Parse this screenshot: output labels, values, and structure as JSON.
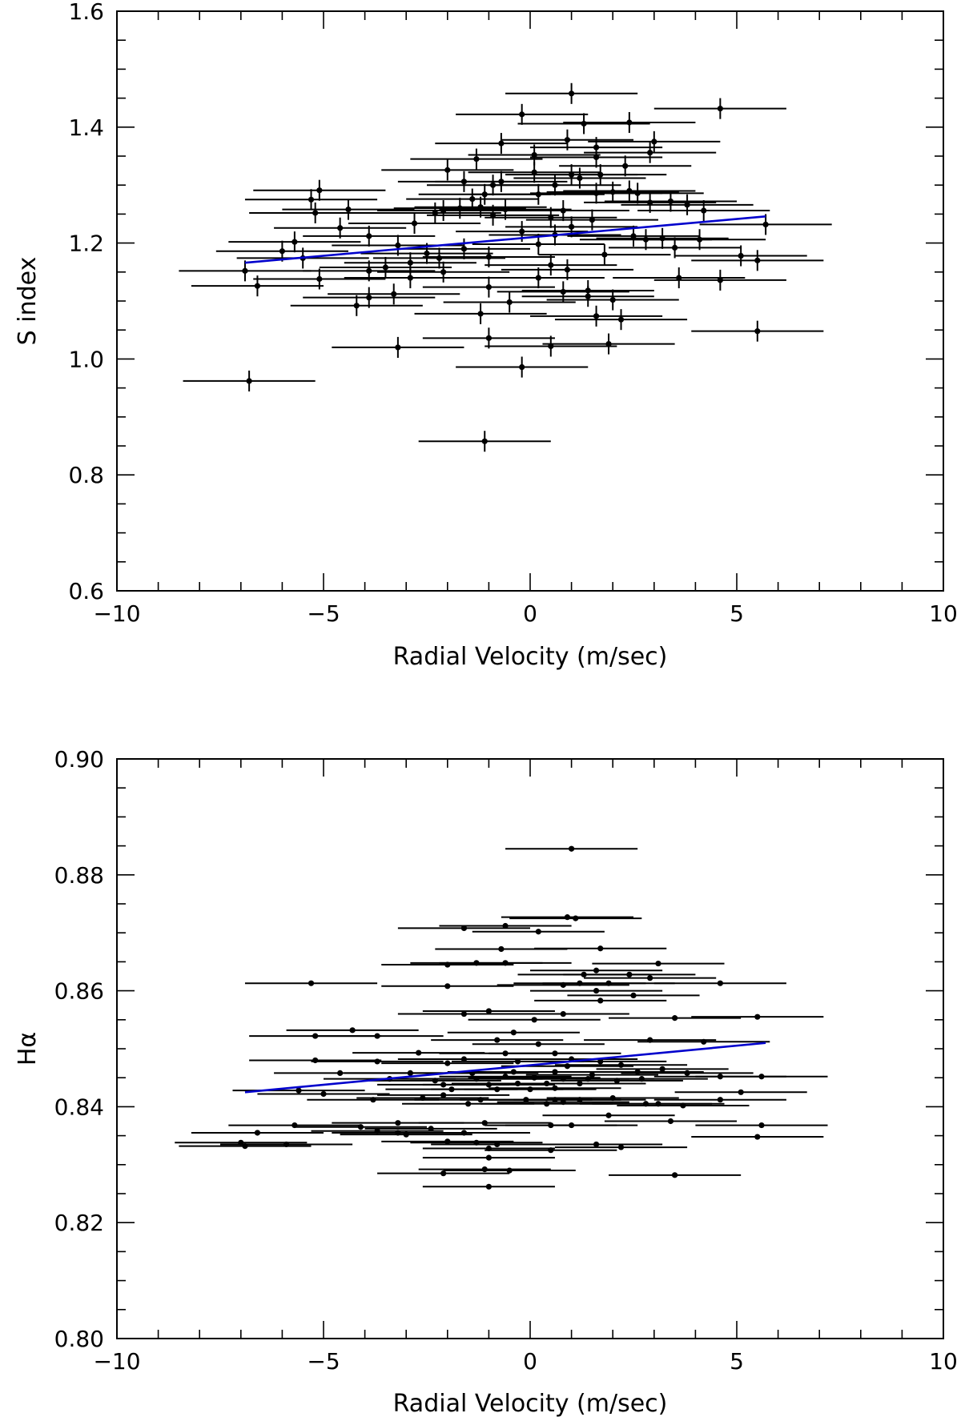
{
  "chart_data": [
    {
      "type": "scatter",
      "xlabel": "Radial Velocity (m/sec)",
      "ylabel": "S index",
      "xlim": [
        -10,
        10
      ],
      "ylim": [
        0.6,
        1.6
      ],
      "xticks": [
        -10,
        -5,
        0,
        5,
        10
      ],
      "xtick_labels": [
        "−10",
        "−5",
        "0",
        "5",
        "10"
      ],
      "yticks": [
        0.6,
        0.8,
        1.0,
        1.2,
        1.4,
        1.6
      ],
      "ytick_labels": [
        "0.6",
        "0.8",
        "1.0",
        "1.2",
        "1.4",
        "1.6"
      ],
      "x_err": 1.6,
      "y_err": 0.018,
      "points": [
        [
          1.0,
          1.458
        ],
        [
          4.6,
          1.432
        ],
        [
          -0.2,
          1.422
        ],
        [
          1.3,
          1.406
        ],
        [
          2.4,
          1.408
        ],
        [
          0.9,
          1.378
        ],
        [
          3.0,
          1.375
        ],
        [
          -0.7,
          1.372
        ],
        [
          1.6,
          1.365
        ],
        [
          2.9,
          1.356
        ],
        [
          0.1,
          1.352
        ],
        [
          1.6,
          1.348
        ],
        [
          -1.3,
          1.345
        ],
        [
          2.3,
          1.333
        ],
        [
          -2.0,
          1.326
        ],
        [
          0.1,
          1.322
        ],
        [
          1.0,
          1.318
        ],
        [
          1.7,
          1.318
        ],
        [
          1.2,
          1.312
        ],
        [
          -1.6,
          1.306
        ],
        [
          -0.7,
          1.306
        ],
        [
          -0.9,
          1.3
        ],
        [
          0.6,
          1.3
        ],
        [
          -5.1,
          1.291
        ],
        [
          2.4,
          1.29
        ],
        [
          1.6,
          1.286
        ],
        [
          2.0,
          1.288
        ],
        [
          2.6,
          1.286
        ],
        [
          -1.1,
          1.284
        ],
        [
          0.2,
          1.284
        ],
        [
          -5.3,
          1.275
        ],
        [
          -1.4,
          1.276
        ],
        [
          3.4,
          1.272
        ],
        [
          2.9,
          1.27
        ],
        [
          3.8,
          1.266
        ],
        [
          -4.4,
          1.258
        ],
        [
          -2.1,
          1.256
        ],
        [
          -1.7,
          1.26
        ],
        [
          -1.2,
          1.262
        ],
        [
          -0.6,
          1.258
        ],
        [
          0.8,
          1.256
        ],
        [
          -5.2,
          1.252
        ],
        [
          -2.3,
          1.252
        ],
        [
          -0.9,
          1.248
        ],
        [
          4.2,
          1.256
        ],
        [
          0.5,
          1.244
        ],
        [
          1.5,
          1.24
        ],
        [
          -2.8,
          1.234
        ],
        [
          5.7,
          1.232
        ],
        [
          -4.6,
          1.226
        ],
        [
          1.0,
          1.228
        ],
        [
          -0.2,
          1.22
        ],
        [
          -3.9,
          1.212
        ],
        [
          0.6,
          1.214
        ],
        [
          2.5,
          1.212
        ],
        [
          2.8,
          1.206
        ],
        [
          3.2,
          1.208
        ],
        [
          4.1,
          1.206
        ],
        [
          -5.7,
          1.202
        ],
        [
          -3.2,
          1.196
        ],
        [
          0.2,
          1.198
        ],
        [
          3.5,
          1.192
        ],
        [
          -1.6,
          1.19
        ],
        [
          -6.0,
          1.186
        ],
        [
          -2.5,
          1.182
        ],
        [
          1.8,
          1.18
        ],
        [
          -2.2,
          1.174
        ],
        [
          -1.0,
          1.176
        ],
        [
          5.1,
          1.178
        ],
        [
          -5.5,
          1.174
        ],
        [
          5.5,
          1.17
        ],
        [
          -2.9,
          1.166
        ],
        [
          0.5,
          1.162
        ],
        [
          -3.5,
          1.158
        ],
        [
          -3.9,
          1.152
        ],
        [
          -2.1,
          1.15
        ],
        [
          0.9,
          1.154
        ],
        [
          -6.9,
          1.152
        ],
        [
          -5.1,
          1.138
        ],
        [
          -2.9,
          1.14
        ],
        [
          0.2,
          1.14
        ],
        [
          3.6,
          1.14
        ],
        [
          4.6,
          1.136
        ],
        [
          -6.6,
          1.126
        ],
        [
          -1.0,
          1.124
        ],
        [
          1.4,
          1.118
        ],
        [
          0.8,
          1.116
        ],
        [
          1.4,
          1.108
        ],
        [
          -3.9,
          1.106
        ],
        [
          -3.3,
          1.112
        ],
        [
          2.0,
          1.102
        ],
        [
          -0.5,
          1.098
        ],
        [
          -4.2,
          1.092
        ],
        [
          -1.2,
          1.078
        ],
        [
          1.6,
          1.074
        ],
        [
          2.2,
          1.068
        ],
        [
          5.5,
          1.048
        ],
        [
          -1.0,
          1.036
        ],
        [
          1.9,
          1.026
        ],
        [
          -3.2,
          1.02
        ],
        [
          0.5,
          1.022
        ],
        [
          -0.2,
          0.986
        ],
        [
          -6.8,
          0.962
        ],
        [
          -1.1,
          0.858
        ]
      ],
      "fit": {
        "x": [
          -6.9,
          5.7
        ],
        "y": [
          1.166,
          1.246
        ]
      }
    },
    {
      "type": "scatter",
      "xlabel": "Radial Velocity (m/sec)",
      "ylabel": "Hα",
      "xlim": [
        -10,
        10
      ],
      "ylim": [
        0.8,
        0.9
      ],
      "xticks": [
        -10,
        -5,
        0,
        5,
        10
      ],
      "xtick_labels": [
        "−10",
        "−5",
        "0",
        "5",
        "10"
      ],
      "yticks": [
        0.8,
        0.82,
        0.84,
        0.86,
        0.88,
        0.9
      ],
      "ytick_labels": [
        "0.80",
        "0.82",
        "0.84",
        "0.86",
        "0.88",
        "0.90"
      ],
      "x_err": 1.6,
      "y_err": 0,
      "points": [
        [
          1.0,
          0.8845
        ],
        [
          0.9,
          0.8727
        ],
        [
          1.1,
          0.8725
        ],
        [
          -1.6,
          0.8708
        ],
        [
          -0.6,
          0.8712
        ],
        [
          0.2,
          0.8702
        ],
        [
          -0.7,
          0.8672
        ],
        [
          1.7,
          0.8673
        ],
        [
          -1.3,
          0.8648
        ],
        [
          -2.0,
          0.8645
        ],
        [
          -0.6,
          0.8648
        ],
        [
          3.1,
          0.8647
        ],
        [
          1.3,
          0.8628
        ],
        [
          2.4,
          0.8628
        ],
        [
          1.6,
          0.8635
        ],
        [
          -5.3,
          0.8613
        ],
        [
          0.8,
          0.861
        ],
        [
          1.2,
          0.8613
        ],
        [
          1.9,
          0.8613
        ],
        [
          2.9,
          0.8622
        ],
        [
          4.6,
          0.8613
        ],
        [
          -2.0,
          0.8608
        ],
        [
          1.6,
          0.86
        ],
        [
          2.5,
          0.8592
        ],
        [
          1.7,
          0.8583
        ],
        [
          -1.6,
          0.856
        ],
        [
          -1.0,
          0.8565
        ],
        [
          0.1,
          0.855
        ],
        [
          0.8,
          0.856
        ],
        [
          3.5,
          0.8553
        ],
        [
          5.5,
          0.8555
        ],
        [
          -4.3,
          0.8532
        ],
        [
          -5.2,
          0.8522
        ],
        [
          -3.7,
          0.8522
        ],
        [
          -0.4,
          0.8528
        ],
        [
          -0.8,
          0.8515
        ],
        [
          0.2,
          0.8508
        ],
        [
          2.9,
          0.8515
        ],
        [
          4.2,
          0.8512
        ],
        [
          -2.7,
          0.8493
        ],
        [
          -1.6,
          0.8482
        ],
        [
          -0.6,
          0.8492
        ],
        [
          0.6,
          0.8492
        ],
        [
          1.0,
          0.8482
        ],
        [
          1.7,
          0.8478
        ],
        [
          2.2,
          0.8472
        ],
        [
          -5.2,
          0.848
        ],
        [
          -3.7,
          0.8478
        ],
        [
          -2.0,
          0.8475
        ],
        [
          -0.3,
          0.8478
        ],
        [
          0.9,
          0.847
        ],
        [
          3.2,
          0.8465
        ],
        [
          -4.6,
          0.8458
        ],
        [
          -2.9,
          0.8458
        ],
        [
          -1.4,
          0.8458
        ],
        [
          -0.4,
          0.846
        ],
        [
          0.6,
          0.846
        ],
        [
          1.5,
          0.8455
        ],
        [
          2.6,
          0.846
        ],
        [
          3.8,
          0.8458
        ],
        [
          4.6,
          0.8452
        ],
        [
          5.6,
          0.8452
        ],
        [
          -3.4,
          0.8448
        ],
        [
          -2.3,
          0.8445
        ],
        [
          -1.3,
          0.8448
        ],
        [
          -0.6,
          0.8452
        ],
        [
          0.1,
          0.845
        ],
        [
          0.8,
          0.8448
        ],
        [
          1.4,
          0.8448
        ],
        [
          2.1,
          0.8445
        ],
        [
          2.7,
          0.8448
        ],
        [
          -2.1,
          0.8438
        ],
        [
          -1.0,
          0.8438
        ],
        [
          -0.3,
          0.844
        ],
        [
          0.4,
          0.844
        ],
        [
          1.2,
          0.844
        ],
        [
          -1.9,
          0.843
        ],
        [
          -0.8,
          0.843
        ],
        [
          0.0,
          0.843
        ],
        [
          0.6,
          0.8432
        ],
        [
          5.1,
          0.8425
        ],
        [
          -5.6,
          0.8428
        ],
        [
          -5.0,
          0.8422
        ],
        [
          -2.1,
          0.842
        ],
        [
          -3.8,
          0.8412
        ],
        [
          -2.6,
          0.8415
        ],
        [
          -1.2,
          0.8412
        ],
        [
          -0.1,
          0.8412
        ],
        [
          0.6,
          0.8412
        ],
        [
          1.2,
          0.8412
        ],
        [
          2.0,
          0.8415
        ],
        [
          2.8,
          0.8405
        ],
        [
          3.1,
          0.8405
        ],
        [
          3.7,
          0.8402
        ],
        [
          4.6,
          0.8412
        ],
        [
          -1.5,
          0.8405
        ],
        [
          0.4,
          0.8405
        ],
        [
          0.8,
          0.8408
        ],
        [
          1.9,
          0.8385
        ],
        [
          3.4,
          0.8375
        ],
        [
          5.6,
          0.8368
        ],
        [
          -3.2,
          0.8372
        ],
        [
          -1.1,
          0.8372
        ],
        [
          0.5,
          0.8368
        ],
        [
          1.0,
          0.8368
        ],
        [
          -5.7,
          0.8368
        ],
        [
          -4.1,
          0.8365
        ],
        [
          -3.7,
          0.8358
        ],
        [
          -2.4,
          0.8362
        ],
        [
          -3.2,
          0.8355
        ],
        [
          -3.0,
          0.8352
        ],
        [
          -6.6,
          0.8355
        ],
        [
          -1.6,
          0.8355
        ],
        [
          5.5,
          0.8348
        ],
        [
          -7.0,
          0.8338
        ],
        [
          -6.9,
          0.8332
        ],
        [
          -5.9,
          0.8335
        ],
        [
          -2.0,
          0.834
        ],
        [
          -1.3,
          0.8338
        ],
        [
          -0.8,
          0.8335
        ],
        [
          1.6,
          0.8335
        ],
        [
          2.2,
          0.833
        ],
        [
          -1.0,
          0.8328
        ],
        [
          0.5,
          0.8325
        ],
        [
          -0.5,
          0.829
        ],
        [
          -1.0,
          0.8312
        ],
        [
          -2.1,
          0.8285
        ],
        [
          -1.1,
          0.8292
        ],
        [
          3.5,
          0.8282
        ],
        [
          -1.0,
          0.8262
        ]
      ],
      "fit": {
        "x": [
          -6.9,
          5.7
        ],
        "y": [
          0.8425,
          0.851
        ]
      }
    }
  ]
}
